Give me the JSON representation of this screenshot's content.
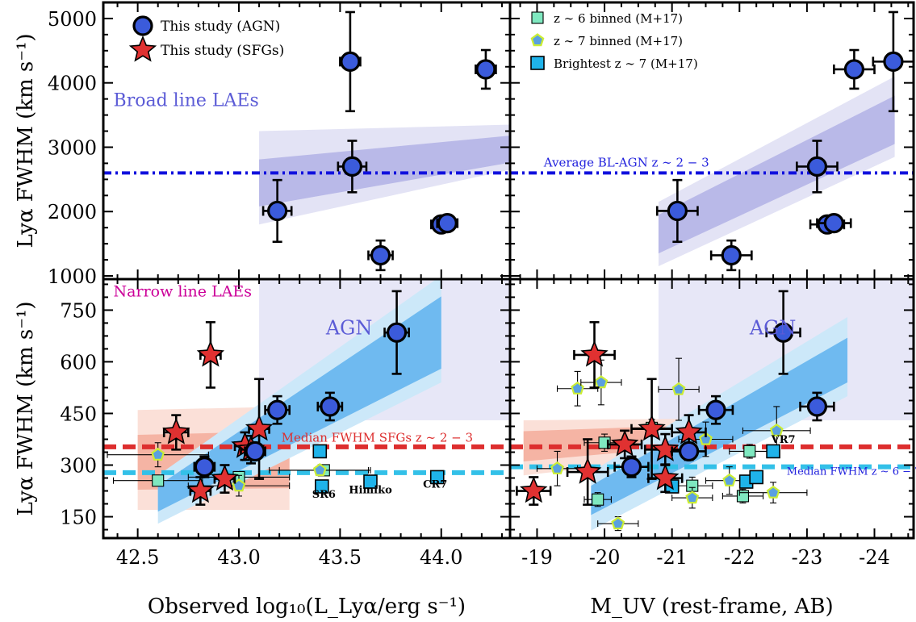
{
  "chart_data": [
    {
      "type": "scatter",
      "panel": "top-left",
      "ylabel": "Lyα FWHM (km s⁻¹)",
      "xlim": [
        42.33,
        44.34
      ],
      "ylim": [
        950,
        5250
      ],
      "xticks": [
        42.5,
        43.0,
        43.5,
        44.0
      ],
      "yticks": [
        1000,
        2000,
        3000,
        4000,
        5000
      ],
      "xtick_labels": [
        "",
        "",
        "",
        ""
      ],
      "ytick_labels": [
        "1000",
        "2000",
        "3000",
        "4000",
        "5000"
      ],
      "hline": 2600,
      "band": {
        "x": [
          43.1,
          44.34
        ],
        "mid": [
          2450,
          2950
        ],
        "inner": [
          [
            2080,
            2810
          ],
          [
            2760,
            3180
          ]
        ],
        "outer": [
          [
            1800,
            3250
          ],
          [
            2650,
            3350
          ]
        ]
      },
      "annotations": [
        {
          "text": "Broad line LAEs",
          "x": 42.38,
          "y": 3640,
          "color": "#5b5bd6",
          "size": 22
        }
      ],
      "series": [
        {
          "name": "This study (AGN)",
          "marker": "circle",
          "points": [
            {
              "x": 43.19,
              "y": 2010,
              "xerr": 0.07,
              "yerr": 480
            },
            {
              "x": 43.55,
              "y": 4330,
              "xerr": 0.05,
              "yerr": 770
            },
            {
              "x": 43.56,
              "y": 2700,
              "xerr": 0.07,
              "yerr": 400
            },
            {
              "x": 43.7,
              "y": 1320,
              "xerr": 0.06,
              "yerr": 230
            },
            {
              "x": 44.0,
              "y": 1800,
              "xerr": 0.05,
              "yerr": 0
            },
            {
              "x": 44.03,
              "y": 1820,
              "xerr": 0.05,
              "yerr": 0
            },
            {
              "x": 44.22,
              "y": 4210,
              "xerr": 0.05,
              "yerr": 300
            }
          ]
        }
      ]
    },
    {
      "type": "scatter",
      "panel": "top-right",
      "xlim": [
        -18.6,
        -24.58
      ],
      "ylim": [
        950,
        5250
      ],
      "xticks": [
        -19,
        -20,
        -21,
        -22,
        -23,
        -24
      ],
      "yticks": [
        1000,
        2000,
        3000,
        4000,
        5000
      ],
      "xtick_labels": [
        "",
        "",
        "",
        "",
        "",
        ""
      ],
      "hline": 2600,
      "band": {
        "x": [
          -20.8,
          -24.3
        ],
        "mid": [
          1650,
          3430
        ],
        "inner": [
          [
            1350,
            1950
          ],
          [
            3050,
            3800
          ]
        ],
        "outer": [
          [
            1150,
            2150
          ],
          [
            2850,
            4100
          ]
        ]
      },
      "annotations": [
        {
          "text": "Average BL-AGN z ∼ 2 − 3",
          "x": -19.1,
          "y": 2700,
          "color": "#2222dd",
          "size": 15
        }
      ],
      "series": [
        {
          "name": "This study (AGN)",
          "marker": "circle",
          "points": [
            {
              "x": -21.08,
              "y": 2010,
              "xerr": 0.3,
              "yerr": 480
            },
            {
              "x": -21.88,
              "y": 1320,
              "xerr": 0.3,
              "yerr": 230
            },
            {
              "x": -23.15,
              "y": 2700,
              "xerr": 0.3,
              "yerr": 400
            },
            {
              "x": -23.3,
              "y": 1800,
              "xerr": 0.25,
              "yerr": 0
            },
            {
              "x": -23.4,
              "y": 1820,
              "xerr": 0.25,
              "yerr": 0
            },
            {
              "x": -23.7,
              "y": 4210,
              "xerr": 0.3,
              "yerr": 300
            },
            {
              "x": -24.28,
              "y": 4330,
              "xerr": 0.3,
              "yerr": 770
            }
          ]
        }
      ]
    },
    {
      "type": "scatter",
      "panel": "bottom-left",
      "xlabel": "Observed log₁₀(L_Lyα/erg s⁻¹)",
      "ylabel": "Lyα FWHM (km s⁻¹)",
      "xlim": [
        42.33,
        44.34
      ],
      "ylim": [
        88,
        840
      ],
      "xticks": [
        42.5,
        43.0,
        43.5,
        44.0
      ],
      "yticks": [
        150,
        300,
        450,
        600,
        750
      ],
      "xtick_labels": [
        "42.5",
        "43.0",
        "43.5",
        "44.0"
      ],
      "ytick_labels": [
        "150",
        "300",
        "450",
        "600",
        "750"
      ],
      "hlines": [
        {
          "y": 353,
          "color": "#dd2e2e"
        },
        {
          "y": 278,
          "color": "#33c0e8"
        }
      ],
      "agn_region": {
        "x": [
          43.1,
          44.34
        ],
        "y": [
          430,
          840
        ]
      },
      "sfg_band": {
        "x": [
          42.5,
          43.25
        ],
        "mid": [
          300,
          310
        ],
        "outer": [
          [
            170,
            460
          ],
          [
            170,
            470
          ]
        ]
      },
      "agn_band": {
        "x": [
          42.6,
          44.0
        ],
        "mid": [
          200,
          690
        ],
        "inner": [
          [
            165,
            240
          ],
          [
            580,
            790
          ]
        ],
        "outer": [
          [
            130,
            270
          ],
          [
            540,
            850
          ]
        ]
      },
      "annotations": [
        {
          "text": "Narrow line LAEs",
          "x": 42.38,
          "y": 790,
          "color": "#cc0099",
          "size": 19
        },
        {
          "text": "AGN",
          "x": 43.43,
          "y": 680,
          "color": "#5b5bd6",
          "size": 24
        },
        {
          "text": "Median FWHM SFGs z ∼ 2 − 3",
          "x": 43.21,
          "y": 368,
          "color": "#dd2e2e",
          "size": 15
        },
        {
          "text": "SR6",
          "x": 43.42,
          "y": 205,
          "color": "#000000",
          "size": 13
        },
        {
          "text": "Himiko",
          "x": 43.65,
          "y": 218,
          "color": "#000000",
          "size": 13
        },
        {
          "text": "CR7",
          "x": 43.97,
          "y": 235,
          "color": "#000000",
          "size": 13
        }
      ],
      "series": [
        {
          "name": "This study (AGN)",
          "marker": "circle",
          "points": [
            {
              "x": 42.83,
              "y": 295,
              "xerr": 0.05,
              "yerr": 30
            },
            {
              "x": 43.08,
              "y": 340,
              "xerr": 0.05,
              "yerr": 25
            },
            {
              "x": 43.19,
              "y": 460,
              "xerr": 0.06,
              "yerr": 40
            },
            {
              "x": 43.45,
              "y": 470,
              "xerr": 0.06,
              "yerr": 40
            },
            {
              "x": 43.78,
              "y": 685,
              "xerr": 0.06,
              "yerr": 120
            }
          ]
        },
        {
          "name": "This study (SFGs)",
          "marker": "star",
          "points": [
            {
              "x": 42.69,
              "y": 395,
              "xerr": 0.06,
              "yerr": 50
            },
            {
              "x": 42.81,
              "y": 225,
              "xerr": 0.05,
              "yerr": 40
            },
            {
              "x": 42.86,
              "y": 620,
              "xerr": 0.05,
              "yerr": 95
            },
            {
              "x": 42.93,
              "y": 260,
              "xerr": 0.05,
              "yerr": 40
            },
            {
              "x": 43.03,
              "y": 355,
              "xerr": 0.05,
              "yerr": 40
            },
            {
              "x": 43.06,
              "y": 345,
              "xerr": 0.05,
              "yerr": 40
            },
            {
              "x": 43.1,
              "y": 405,
              "xerr": 0.05,
              "yerr": 145
            }
          ]
        },
        {
          "name": "z ∼ 6 binned (M+17)",
          "marker": "square-small",
          "points": [
            {
              "x": 42.6,
              "y": 255,
              "xerr": 0.22,
              "yerr": 0
            },
            {
              "x": 43.0,
              "y": 265,
              "xerr": 0.25,
              "yerr": 0
            },
            {
              "x": 43.42,
              "y": 285,
              "xerr": 0.22,
              "yerr": 0
            }
          ]
        },
        {
          "name": "z ∼ 7 binned (M+17)",
          "marker": "pentagon",
          "points": [
            {
              "x": 42.6,
              "y": 330,
              "xerr": 0.25,
              "yerr": 35
            },
            {
              "x": 43.0,
              "y": 240,
              "xerr": 0.25,
              "yerr": 30
            },
            {
              "x": 43.4,
              "y": 285,
              "xerr": 0.25,
              "yerr": 0
            }
          ]
        },
        {
          "name": "Brightest z ∼ 7 (M+17)",
          "marker": "square",
          "points": [
            {
              "x": 43.4,
              "y": 340,
              "xerr": 0,
              "yerr": 0
            },
            {
              "x": 43.41,
              "y": 238,
              "xerr": 0,
              "yerr": 0
            },
            {
              "x": 43.65,
              "y": 252,
              "xerr": 0,
              "yerr": 0
            },
            {
              "x": 43.98,
              "y": 265,
              "xerr": 0,
              "yerr": 0
            }
          ]
        }
      ]
    },
    {
      "type": "scatter",
      "panel": "bottom-right",
      "xlabel": "M_UV (rest-frame, AB)",
      "xlim": [
        -18.6,
        -24.58
      ],
      "ylim": [
        88,
        840
      ],
      "xticks": [
        -19,
        -20,
        -21,
        -22,
        -23,
        -24
      ],
      "yticks": [
        150,
        300,
        450,
        600,
        750
      ],
      "xtick_labels": [
        "-19",
        "-20",
        "-21",
        "-22",
        "-23",
        "-24"
      ],
      "hlines": [
        {
          "y": 353,
          "color": "#dd2e2e"
        },
        {
          "y": 295,
          "color": "#33c0e8"
        }
      ],
      "agn_region": {
        "x": [
          -20.8,
          -24.58
        ],
        "y": [
          430,
          840
        ]
      },
      "sfg_band": {
        "x": [
          -18.8,
          -21.5
        ],
        "mid": [
          360,
          395
        ],
        "outer": [
          [
            270,
            430
          ],
          [
            330,
            435
          ]
        ]
      },
      "agn_band": {
        "x": [
          -19.8,
          -23.6
        ],
        "mid": [
          195,
          610
        ],
        "inner": [
          [
            155,
            240
          ],
          [
            540,
            670
          ]
        ],
        "outer": [
          [
            110,
            280
          ],
          [
            500,
            730
          ]
        ]
      },
      "annotations": [
        {
          "text": "AGN",
          "x": -22.15,
          "y": 680,
          "color": "#5b5bd6",
          "size": 24
        },
        {
          "text": "Median FWHM z ∼ 6 − 7",
          "x": -22.7,
          "y": 272,
          "color": "#2222dd",
          "size": 13
        },
        {
          "text": "VR7",
          "x": -22.65,
          "y": 365,
          "color": "#000000",
          "size": 13
        }
      ],
      "series": [
        {
          "name": "This study (AGN)",
          "marker": "circle",
          "points": [
            {
              "x": -20.4,
              "y": 295,
              "xerr": 0.25,
              "yerr": 30
            },
            {
              "x": -21.25,
              "y": 340,
              "xerr": 0.25,
              "yerr": 25
            },
            {
              "x": -21.65,
              "y": 460,
              "xerr": 0.25,
              "yerr": 40
            },
            {
              "x": -22.65,
              "y": 685,
              "xerr": 0.25,
              "yerr": 120
            },
            {
              "x": -23.15,
              "y": 470,
              "xerr": 0.25,
              "yerr": 40
            }
          ]
        },
        {
          "name": "This study (SFGs)",
          "marker": "star",
          "points": [
            {
              "x": -18.95,
              "y": 225,
              "xerr": 0.25,
              "yerr": 40
            },
            {
              "x": -19.75,
              "y": 280,
              "xerr": 0.3,
              "yerr": 95
            },
            {
              "x": -19.85,
              "y": 620,
              "xerr": 0.3,
              "yerr": 95
            },
            {
              "x": -20.3,
              "y": 360,
              "xerr": 0.25,
              "yerr": 40
            },
            {
              "x": -20.7,
              "y": 405,
              "xerr": 0.3,
              "yerr": 145
            },
            {
              "x": -20.9,
              "y": 345,
              "xerr": 0.3,
              "yerr": 45
            },
            {
              "x": -20.9,
              "y": 262,
              "xerr": 0.25,
              "yerr": 40
            },
            {
              "x": -21.25,
              "y": 395,
              "xerr": 0.25,
              "yerr": 50
            }
          ]
        },
        {
          "name": "z ∼ 6 binned (M+17)",
          "marker": "square-small",
          "points": [
            {
              "x": -19.9,
              "y": 200,
              "xerr": 0.2,
              "yerr": 20
            },
            {
              "x": -20.0,
              "y": 365,
              "xerr": 0.3,
              "yerr": 25
            },
            {
              "x": -20.7,
              "y": 408,
              "xerr": 0.3,
              "yerr": 25
            },
            {
              "x": -21.3,
              "y": 240,
              "xerr": 0.3,
              "yerr": 25
            },
            {
              "x": -22.05,
              "y": 210,
              "xerr": 0.3,
              "yerr": 20
            },
            {
              "x": -22.15,
              "y": 340,
              "xerr": 0.3,
              "yerr": 20
            }
          ]
        },
        {
          "name": "z ∼ 7 binned (M+17)",
          "marker": "pentagon",
          "points": [
            {
              "x": -19.3,
              "y": 290,
              "xerr": 0.3,
              "yerr": 50
            },
            {
              "x": -19.6,
              "y": 522,
              "xerr": 0.3,
              "yerr": 50
            },
            {
              "x": -19.95,
              "y": 540,
              "xerr": 0.3,
              "yerr": 65
            },
            {
              "x": -20.2,
              "y": 130,
              "xerr": 0.3,
              "yerr": 20
            },
            {
              "x": -21.1,
              "y": 520,
              "xerr": 0.3,
              "yerr": 90
            },
            {
              "x": -21.3,
              "y": 205,
              "xerr": 0.3,
              "yerr": 30
            },
            {
              "x": -21.5,
              "y": 375,
              "xerr": 0.4,
              "yerr": 50
            },
            {
              "x": -21.85,
              "y": 255,
              "xerr": 0.35,
              "yerr": 40
            },
            {
              "x": -22.5,
              "y": 220,
              "xerr": 0.5,
              "yerr": 30
            },
            {
              "x": -22.55,
              "y": 400,
              "xerr": 0.5,
              "yerr": 70
            }
          ]
        },
        {
          "name": "Brightest z ∼ 7 (M+17)",
          "marker": "square",
          "points": [
            {
              "x": -21.0,
              "y": 238,
              "xerr": 0,
              "yerr": 0
            },
            {
              "x": -22.1,
              "y": 252,
              "xerr": 0,
              "yerr": 0
            },
            {
              "x": -22.25,
              "y": 265,
              "xerr": 0,
              "yerr": 0
            },
            {
              "x": -22.5,
              "y": 340,
              "xerr": 0,
              "yerr": 0
            }
          ]
        }
      ]
    }
  ],
  "legend": {
    "left": [
      {
        "label": "This study (AGN)",
        "marker": "circle"
      },
      {
        "label": "This study (SFGs)",
        "marker": "star"
      }
    ],
    "right": [
      {
        "label": "z ∼ 6 binned (M+17)",
        "marker": "square-small",
        "bold_prefix": "z"
      },
      {
        "label": "z ∼ 7 binned (M+17)",
        "marker": "pentagon",
        "bold_prefix": "z"
      },
      {
        "label": "Brightest z ∼ 7 (M+17)",
        "marker": "square"
      }
    ]
  },
  "colors": {
    "agn_marker": "#3b5bdb",
    "sfg_marker": "#e03131",
    "z6_marker": "#7fe8c0",
    "z7_marker": "#5aa0e0",
    "z7_edge": "#ccee33",
    "bright_marker": "#1fb3ea",
    "broad_band_outer": "#e3e3f5",
    "broad_band_inner": "#b9b9e8",
    "agn_region": "#e7e7f7",
    "agn_band_outer": "#cce8f9",
    "agn_band_inner": "#6fbaf0",
    "sfg_band_outer": "#fbe0d8",
    "sfg_band_inner": "#f5b4a4",
    "bl_hline": "#1010dd",
    "sfg_hline": "#dd2e2e",
    "hz_hline": "#33c0e8"
  }
}
